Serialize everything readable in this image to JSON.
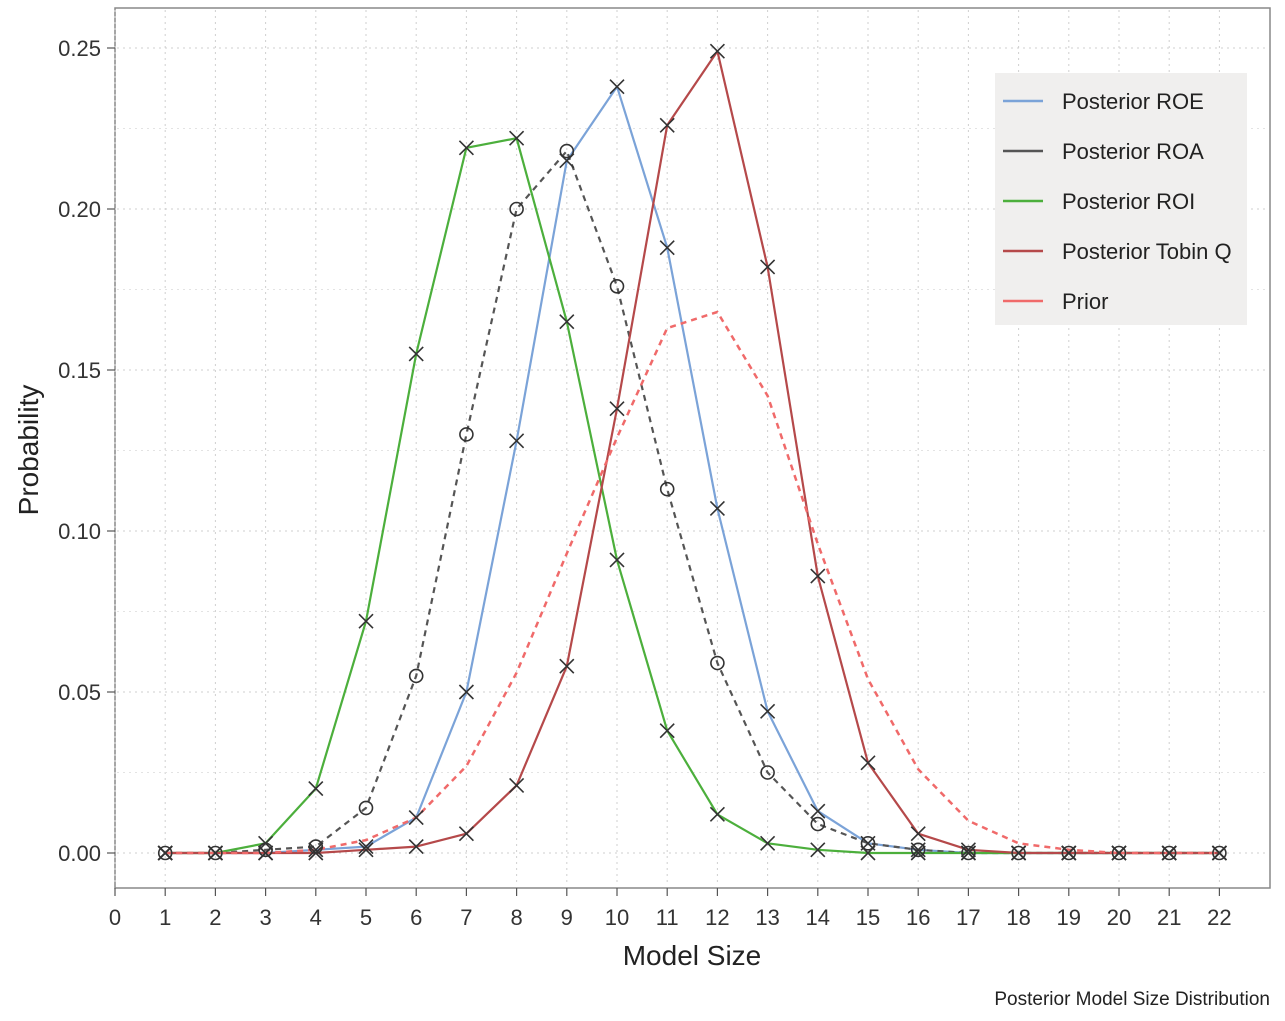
{
  "chart_data": {
    "type": "line",
    "xlabel": "Model Size",
    "ylabel": "Probability",
    "caption": "Posterior Model Size Distribution",
    "xlim": [
      0,
      22
    ],
    "ylim": [
      0,
      0.25
    ],
    "x_ticks": [
      "0",
      "1",
      "2",
      "3",
      "4",
      "5",
      "6",
      "7",
      "8",
      "9",
      "10",
      "11",
      "12",
      "13",
      "14",
      "15",
      "16",
      "17",
      "18",
      "19",
      "20",
      "21",
      "22"
    ],
    "y_ticks": [
      "0.00",
      "0.05",
      "0.10",
      "0.15",
      "0.20",
      "0.25"
    ],
    "x": [
      1,
      2,
      3,
      4,
      5,
      6,
      7,
      8,
      9,
      10,
      11,
      12,
      13,
      14,
      15,
      16,
      17,
      18,
      19,
      20,
      21,
      22
    ],
    "grid": true,
    "legend_position": "top-right",
    "series": [
      {
        "name": "Posterior ROE",
        "color": "#7ba3d8",
        "dash": "solid",
        "marker": "x",
        "values": [
          0,
          0,
          0,
          0.001,
          0.002,
          0.011,
          0.05,
          0.128,
          0.215,
          0.238,
          0.188,
          0.107,
          0.044,
          0.013,
          0.003,
          0.001,
          0,
          0,
          0,
          0,
          0,
          0
        ]
      },
      {
        "name": "Posterior ROA",
        "color": "#555555",
        "dash": "dashed",
        "marker": "circle",
        "values": [
          0,
          0,
          0.001,
          0.002,
          0.014,
          0.055,
          0.13,
          0.2,
          0.218,
          0.176,
          0.113,
          0.059,
          0.025,
          0.009,
          0.003,
          0.001,
          0,
          0,
          0,
          0,
          0,
          0
        ]
      },
      {
        "name": "Posterior ROI",
        "color": "#4caf3c",
        "dash": "solid",
        "marker": "x",
        "values": [
          0,
          0,
          0.003,
          0.02,
          0.072,
          0.155,
          0.219,
          0.222,
          0.165,
          0.091,
          0.038,
          0.012,
          0.003,
          0.001,
          0,
          0,
          0,
          0,
          0,
          0,
          0,
          0
        ]
      },
      {
        "name": "Posterior Tobin Q",
        "color": "#b5494a",
        "dash": "solid",
        "marker": "x",
        "values": [
          0,
          0,
          0,
          0,
          0.001,
          0.002,
          0.006,
          0.021,
          0.058,
          0.138,
          0.226,
          0.249,
          0.182,
          0.086,
          0.028,
          0.006,
          0.001,
          0,
          0,
          0,
          0,
          0
        ]
      },
      {
        "name": "Prior",
        "color": "#f06a6a",
        "dash": "dashed",
        "marker": "none",
        "values": [
          0,
          0,
          0,
          0.001,
          0.004,
          0.011,
          0.027,
          0.056,
          0.093,
          0.129,
          0.163,
          0.168,
          0.142,
          0.096,
          0.054,
          0.026,
          0.01,
          0.003,
          0.001,
          0,
          0,
          0
        ]
      }
    ]
  }
}
